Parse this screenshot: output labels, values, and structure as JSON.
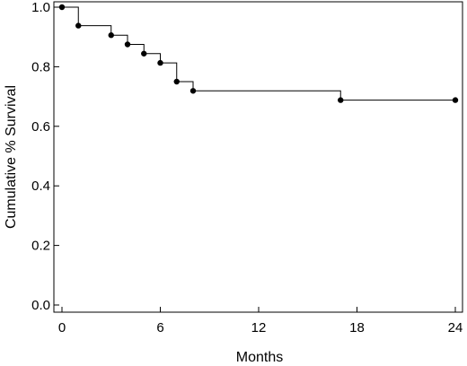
{
  "chart_data": {
    "type": "line",
    "subtype": "kaplan-meier-step",
    "title": "",
    "xlabel": "Months",
    "ylabel": "Cumulative % Survival",
    "xlim": [
      0,
      24
    ],
    "ylim": [
      0,
      1.0
    ],
    "x_ticks": [
      0,
      6,
      12,
      18,
      24
    ],
    "x_tick_labels": [
      "0",
      "6",
      "12",
      "18",
      "24"
    ],
    "y_ticks": [
      0.0,
      0.2,
      0.4,
      0.6,
      0.8,
      1.0
    ],
    "y_tick_labels": [
      "0.0",
      "0.2",
      "0.4",
      "0.6",
      "0.8",
      "1.0"
    ],
    "grid": false,
    "legend": "none",
    "line_color": "#000000",
    "series": [
      {
        "x": [
          0,
          1,
          3,
          4,
          5,
          6,
          7,
          8,
          17,
          24
        ],
        "y": [
          1.0,
          0.938,
          0.906,
          0.875,
          0.844,
          0.813,
          0.75,
          0.719,
          0.688,
          0.688
        ]
      }
    ]
  }
}
